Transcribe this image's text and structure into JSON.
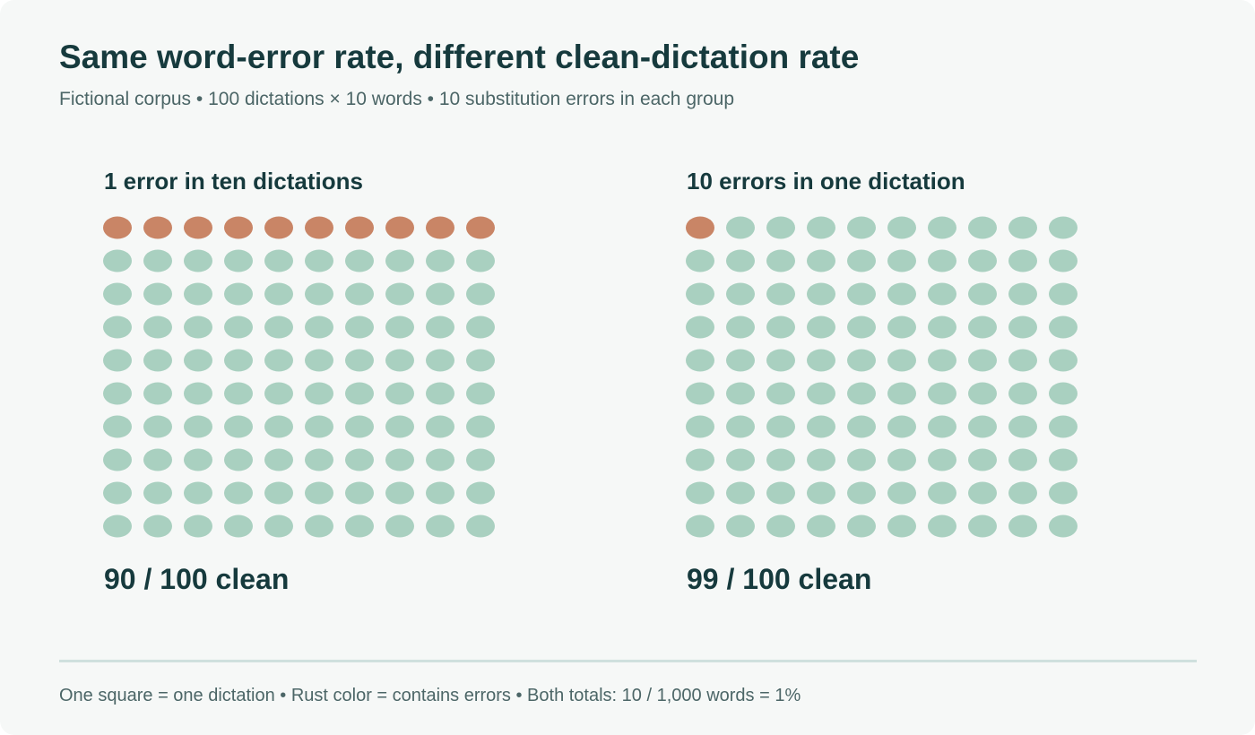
{
  "title": "Same word-error rate, different clean-dictation rate",
  "subtitle": "Fictional corpus • 100 dictations × 10 words • 10 substitution errors in each group",
  "footer": "One square = one dictation • Rust color = contains errors • Both totals: 10 / 1,000 words = 1%",
  "colors": {
    "background": "#f6f8f7",
    "text_dark": "#163a3d",
    "text_muted": "#4c6667",
    "error_dictation": "#c98566",
    "clean_dictation": "#a9d0c0",
    "divider": "#cfe0de"
  },
  "chart_data": [
    {
      "type": "waffle",
      "title": "1 error in ten dictations",
      "rows": 10,
      "columns": 10,
      "total_dictations": 100,
      "error_dictations": 10,
      "clean_dictations": 90,
      "error_positions": [
        0,
        1,
        2,
        3,
        4,
        5,
        6,
        7,
        8,
        9
      ],
      "result_label": "90 / 100 clean"
    },
    {
      "type": "waffle",
      "title": "10 errors in one dictation",
      "rows": 10,
      "columns": 10,
      "total_dictations": 100,
      "error_dictations": 1,
      "clean_dictations": 99,
      "error_positions": [
        0
      ],
      "result_label": "99 / 100 clean"
    }
  ]
}
